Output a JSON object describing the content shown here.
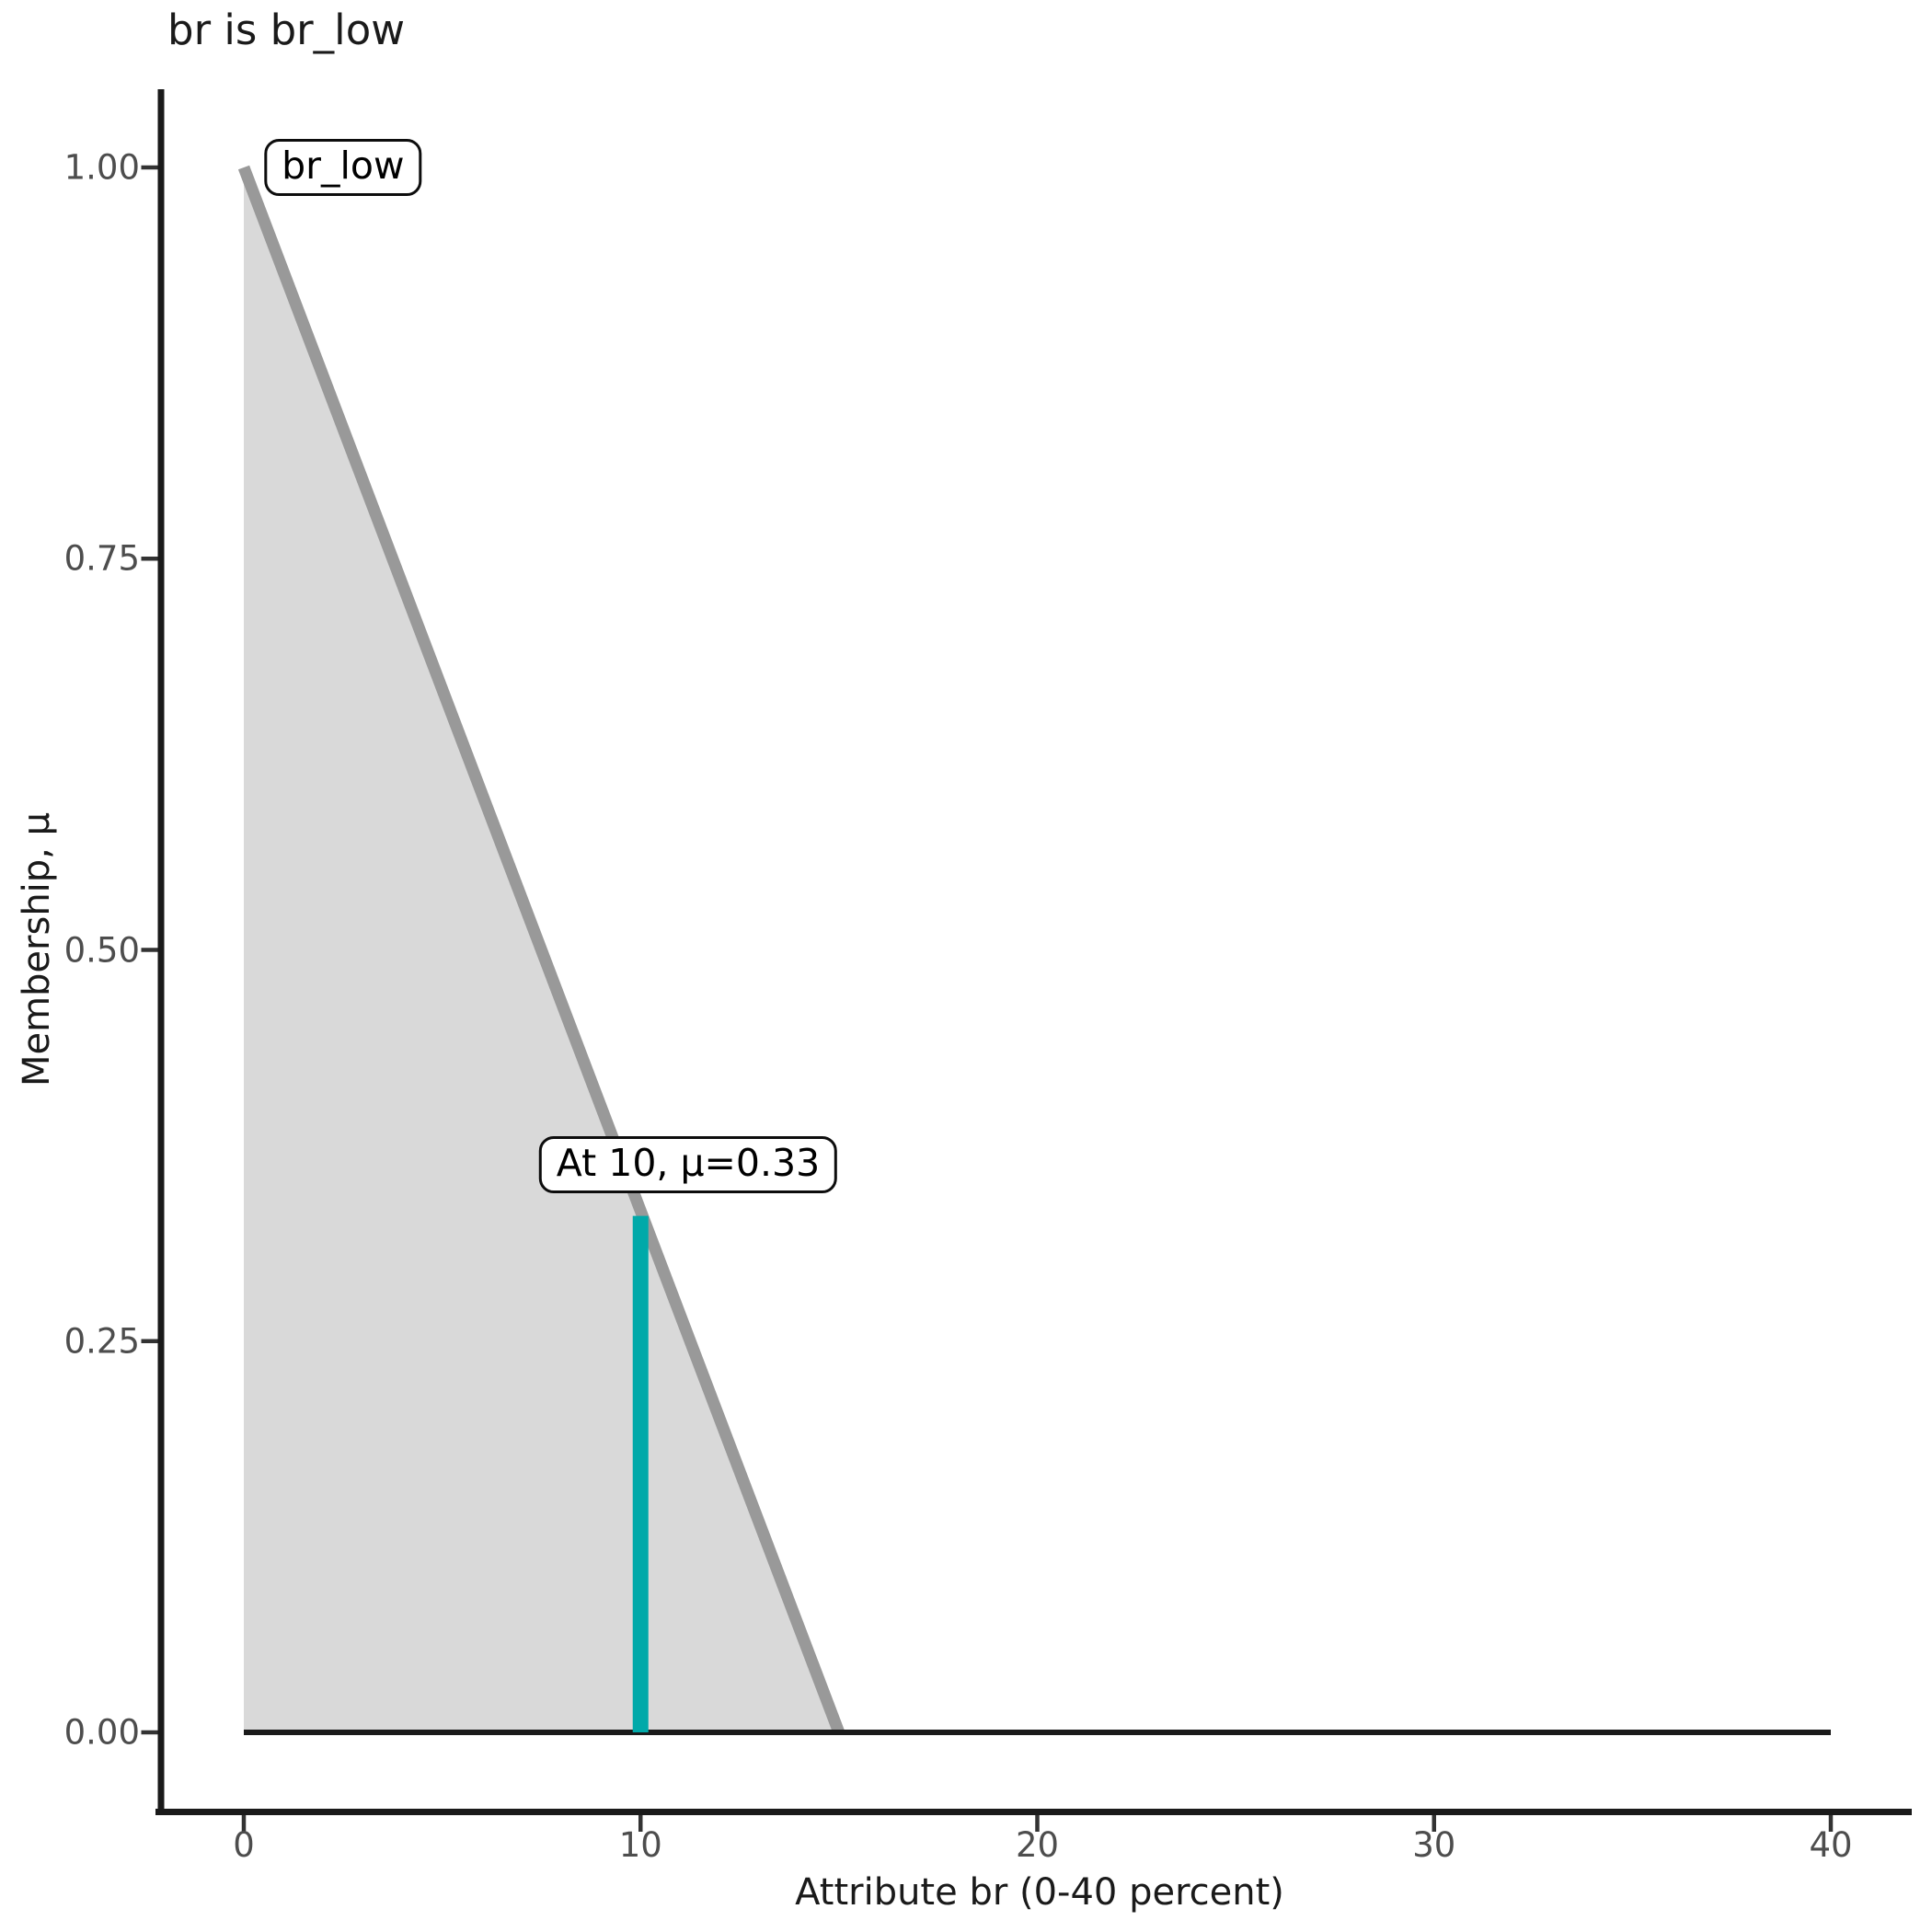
{
  "chart_data": {
    "type": "area",
    "title": "br is br_low",
    "xlabel": "Attribute br (0-40 percent)",
    "ylabel": "Membership, μ",
    "xlim": [
      0,
      40
    ],
    "ylim": [
      0,
      1.05
    ],
    "grid": false,
    "legend": "none",
    "x_ticks": {
      "values": [
        0,
        10,
        20,
        30,
        40
      ],
      "labels": [
        "0",
        "10",
        "20",
        "30",
        "40"
      ]
    },
    "y_ticks": {
      "values": [
        0,
        0.25,
        0.5,
        0.75,
        1.0
      ],
      "labels": [
        "0.00",
        "0.25",
        "0.50",
        "0.75",
        "1.00"
      ]
    },
    "series": [
      {
        "name": "br_low membership function",
        "type": "area",
        "fill_polygon": [
          [
            0,
            0
          ],
          [
            0,
            1
          ],
          [
            15,
            0
          ]
        ],
        "edge_line": [
          [
            0,
            1
          ],
          [
            15,
            0
          ]
        ],
        "fill": "#D9D9D9",
        "stroke": "#999999",
        "stroke_width": 13
      },
      {
        "name": "zero membership baseline",
        "type": "line",
        "points": [
          [
            0,
            0
          ],
          [
            40,
            0
          ]
        ],
        "stroke": "#1A1A1A",
        "stroke_width": 6
      },
      {
        "name": "evaluation at br=10",
        "type": "vline",
        "x": 10,
        "y_from": 0,
        "y_to": 0.33,
        "stroke": "#00A9A9",
        "stroke_width": 17
      }
    ],
    "annotations": [
      {
        "id": "set-label",
        "text": "br_low",
        "x": 2.5,
        "y": 1.0
      },
      {
        "id": "evaluation-label",
        "text": "At 10, μ=0.33",
        "x": 11.2,
        "y": 0.363
      }
    ],
    "colors": {
      "area_fill": "#D9D9D9",
      "area_stroke": "#999999",
      "baseline": "#1A1A1A",
      "evaluation_line": "#00A9A9",
      "axis": "#1A1A1A",
      "tick": "#333333",
      "tick_label": "#4D4D4D",
      "title_text": "#1A1A1A"
    }
  }
}
